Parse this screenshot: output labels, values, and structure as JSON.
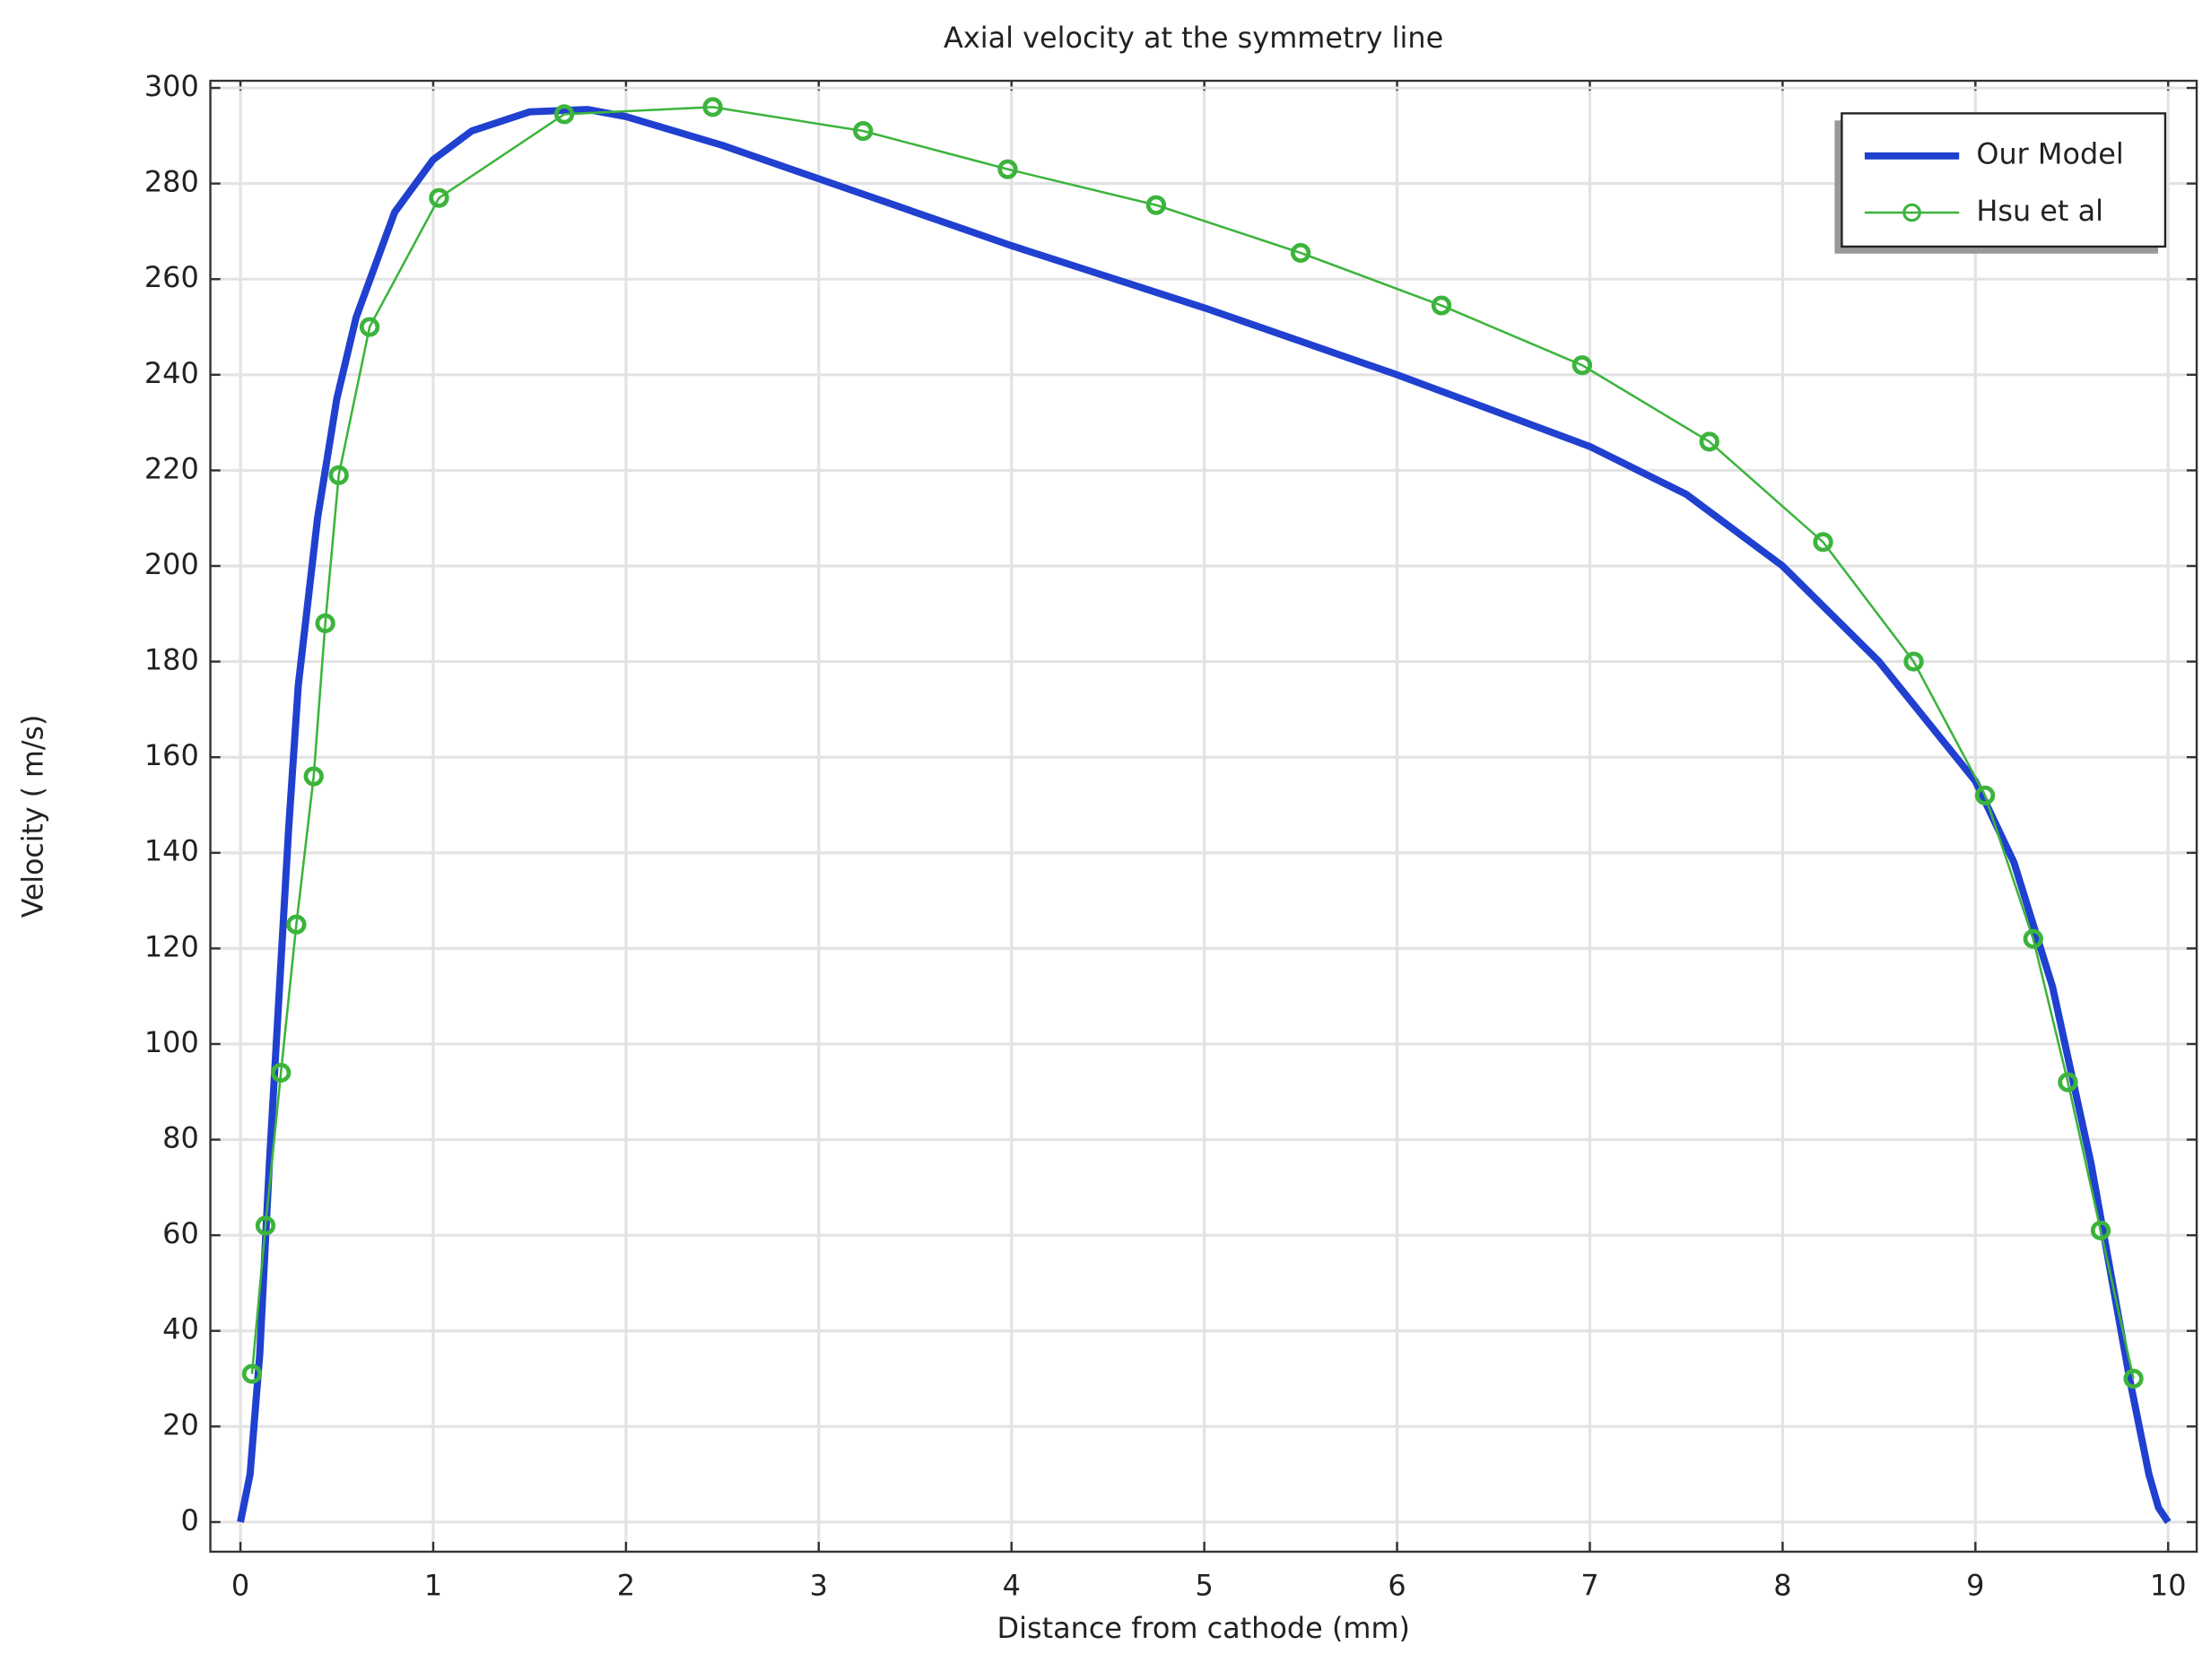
{
  "chart_data": {
    "type": "line",
    "title": "Axial velocity at the symmetry line",
    "x_label": "Distance from cathode (mm)",
    "y_label": "Velocity ( m/s)",
    "xlim": [
      -0.156,
      10.148
    ],
    "ylim": [
      -6.2,
      301.5
    ],
    "xticks": [
      0,
      1,
      2,
      3,
      4,
      5,
      6,
      7,
      8,
      9,
      10
    ],
    "yticks": [
      0,
      20,
      40,
      60,
      80,
      100,
      120,
      140,
      160,
      180,
      200,
      220,
      240,
      260,
      280,
      300
    ],
    "grid": true,
    "legend": "upper right",
    "series": [
      {
        "name": "Our Model",
        "color": "#2040d0",
        "marker": "none",
        "x": [
          0,
          0.05,
          0.1,
          0.15,
          0.2,
          0.25,
          0.3,
          0.4,
          0.5,
          0.6,
          0.8,
          1.0,
          1.2,
          1.5,
          1.8,
          2,
          2.5,
          3,
          4,
          5,
          6,
          7,
          7.5,
          8,
          8.5,
          8.8,
          9,
          9.2,
          9.4,
          9.6,
          9.8,
          9.9,
          9.95,
          10
        ],
        "values": [
          0,
          10,
          35,
          75,
          110,
          145,
          175,
          210,
          235,
          252,
          274,
          285,
          291,
          295,
          295.5,
          294,
          288,
          281,
          267,
          254,
          240,
          225,
          215,
          200,
          180,
          165,
          155,
          138,
          112,
          75,
          30,
          10,
          3,
          0
        ]
      },
      {
        "name": "Hsu et al",
        "color": "#3cb43c",
        "marker": "circle",
        "x": [
          0.06,
          0.13,
          0.21,
          0.29,
          0.38,
          0.44,
          0.51,
          0.67,
          1.03,
          1.68,
          2.45,
          3.23,
          3.98,
          4.75,
          5.5,
          6.23,
          6.96,
          7.62,
          8.21,
          8.68,
          9.05,
          9.3,
          9.48,
          9.65,
          9.82
        ],
        "values": [
          31,
          62,
          94,
          125,
          156,
          188,
          219,
          250,
          277,
          294.5,
          296,
          291,
          283,
          275.5,
          265.5,
          254.5,
          242,
          226,
          205,
          180,
          152,
          122,
          92,
          61,
          30
        ]
      }
    ]
  }
}
